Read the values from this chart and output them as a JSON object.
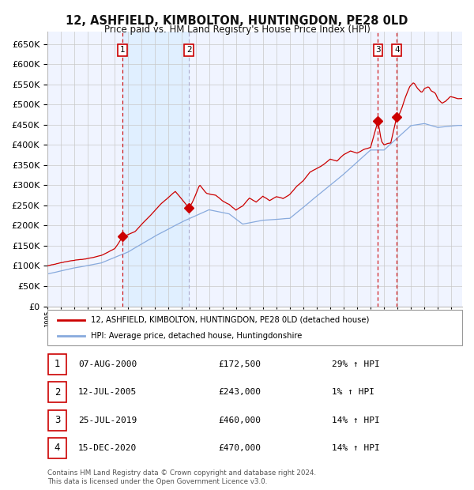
{
  "title": "12, ASHFIELD, KIMBOLTON, HUNTINGDON, PE28 0LD",
  "subtitle": "Price paid vs. HM Land Registry's House Price Index (HPI)",
  "ytick_values": [
    0,
    50000,
    100000,
    150000,
    200000,
    250000,
    300000,
    350000,
    400000,
    450000,
    500000,
    550000,
    600000,
    650000
  ],
  "ylim": [
    0,
    680000
  ],
  "xlim_start": 1995.0,
  "xlim_end": 2025.8,
  "sale_points": [
    {
      "date_num": 2000.58,
      "price": 172500,
      "label": "1"
    },
    {
      "date_num": 2005.52,
      "price": 243000,
      "label": "2"
    },
    {
      "date_num": 2019.55,
      "price": 460000,
      "label": "3"
    },
    {
      "date_num": 2020.95,
      "price": 470000,
      "label": "4"
    }
  ],
  "legend_red_label": "12, ASHFIELD, KIMBOLTON, HUNTINGDON, PE28 0LD (detached house)",
  "legend_blue_label": "HPI: Average price, detached house, Huntingdonshire",
  "table_rows": [
    {
      "num": "1",
      "date": "07-AUG-2000",
      "price": "£172,500",
      "pct": "29% ↑ HPI"
    },
    {
      "num": "2",
      "date": "12-JUL-2005",
      "price": "£243,000",
      "pct": "1% ↑ HPI"
    },
    {
      "num": "3",
      "date": "25-JUL-2019",
      "price": "£460,000",
      "pct": "14% ↑ HPI"
    },
    {
      "num": "4",
      "date": "15-DEC-2020",
      "price": "£470,000",
      "pct": "14% ↑ HPI"
    }
  ],
  "footer": "Contains HM Land Registry data © Crown copyright and database right 2024.\nThis data is licensed under the Open Government Licence v3.0.",
  "background_color": "#ffffff",
  "plot_bg_color": "#f0f4ff",
  "grid_color": "#c8c8c8",
  "red_line_color": "#cc0000",
  "blue_line_color": "#88aadd",
  "shaded_region_color": "#ddeeff",
  "marker_color": "#cc0000",
  "highlight_box_color": "#cc0000",
  "dashed_line_color": "#cc0000",
  "dashed_line2_color": "#aaaacc"
}
